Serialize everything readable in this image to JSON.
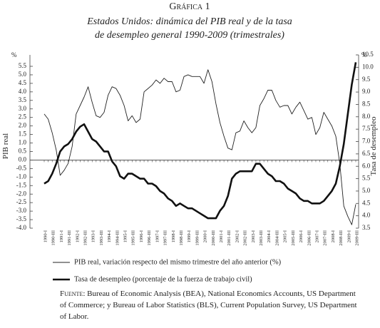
{
  "chart_data": {
    "type": "line",
    "kicker": "Gráfica 1",
    "title": [
      "Estados Unidos: dinámica del PIB real y de la tasa",
      "de desempleo general 1990-2009 (trimestrales)"
    ],
    "y_unit": "%",
    "y2_unit": "%",
    "ylabel": "PIB real",
    "y2label": "Tasa de desempleo",
    "categories": [
      "1990-I",
      null,
      "1990-III",
      null,
      "1991-I",
      null,
      "1991-III",
      null,
      "1992-I",
      null,
      "1992-III",
      null,
      "1993-I",
      null,
      "1993-III",
      null,
      "1994-I",
      null,
      "1994-III",
      null,
      "1995-I",
      null,
      "1995-III",
      null,
      "1996-I",
      null,
      "1996-III",
      null,
      "1997-I",
      null,
      "1997-III",
      null,
      "1998-I",
      null,
      "1998-III",
      null,
      "1999-I",
      null,
      "1999-III",
      null,
      "2000-I",
      null,
      "2000-III",
      null,
      "2001-I",
      null,
      "2001-III",
      null,
      "2002-I",
      null,
      "2002-III",
      null,
      "2003-I",
      null,
      "2003-III",
      null,
      "2004-I",
      null,
      "2004-III",
      null,
      "2005-I",
      null,
      "2005-III",
      null,
      "2006-I",
      null,
      "2006-III",
      null,
      "2007-I",
      null,
      "2007-III",
      null,
      "2008-I",
      null,
      "2008-III",
      null,
      "2009-I",
      null,
      "2009-III"
    ],
    "series": [
      {
        "name": "PIB real, variación respecto del mismo trimestre del año anterior (%)",
        "color": "#222",
        "line_width": 0.9,
        "values": [
          2.7,
          2.4,
          1.6,
          0.6,
          -0.9,
          -0.6,
          -0.2,
          0.8,
          2.7,
          3.2,
          3.7,
          4.3,
          3.4,
          2.6,
          2.5,
          2.8,
          3.8,
          4.3,
          4.2,
          3.8,
          3.2,
          2.3,
          2.6,
          2.2,
          2.4,
          4.0,
          4.2,
          4.4,
          4.7,
          4.5,
          4.8,
          4.6,
          4.6,
          4.0,
          4.1,
          4.9,
          5.0,
          4.9,
          4.9,
          4.9,
          4.5,
          5.3,
          4.6,
          3.3,
          2.2,
          1.4,
          0.7,
          0.6,
          1.6,
          1.7,
          2.3,
          1.9,
          1.6,
          1.9,
          3.2,
          3.6,
          4.1,
          4.1,
          3.5,
          3.1,
          3.2,
          3.2,
          2.7,
          3.1,
          3.4,
          2.9,
          2.4,
          2.5,
          1.5,
          1.9,
          2.8,
          2.4,
          2.0,
          1.4,
          -0.2,
          -2.7,
          -3.3,
          -3.8,
          -2.6
        ]
      },
      {
        "name": "Tasa de desempleo (porcentaje de la fuerza de trabajo civil)",
        "color": "#111",
        "line_width": 2.6,
        "axis": "y2",
        "values": [
          5.3,
          5.4,
          5.7,
          6.1,
          6.6,
          6.8,
          6.9,
          7.1,
          7.4,
          7.6,
          7.7,
          7.4,
          7.1,
          7.0,
          6.8,
          6.6,
          6.6,
          6.2,
          6.0,
          5.6,
          5.5,
          5.7,
          5.7,
          5.6,
          5.5,
          5.5,
          5.3,
          5.3,
          5.2,
          5.0,
          4.9,
          4.7,
          4.6,
          4.4,
          4.5,
          4.4,
          4.3,
          4.3,
          4.2,
          4.1,
          4.0,
          3.9,
          3.9,
          3.9,
          4.2,
          4.4,
          4.8,
          5.5,
          5.7,
          5.8,
          5.8,
          5.8,
          5.8,
          6.1,
          6.1,
          5.9,
          5.7,
          5.6,
          5.4,
          5.4,
          5.3,
          5.1,
          5.0,
          4.9,
          4.7,
          4.6,
          4.6,
          4.5,
          4.5,
          4.5,
          4.6,
          4.8,
          5.0,
          5.3,
          6.0,
          6.9,
          8.1,
          9.3,
          10.2
        ]
      }
    ],
    "ylim": [
      -4.0,
      5.5
    ],
    "yticks": [
      {
        "value": 5.5,
        "label": "5.5"
      },
      {
        "value": 5,
        "label": "5.0"
      },
      4.5,
      {
        "value": 4,
        "label": "4.0"
      },
      3.5,
      {
        "value": 3,
        "label": "3.0"
      },
      2.5,
      {
        "value": 2,
        "label": "2.0"
      },
      1.5,
      {
        "value": 1,
        "label": "1.0"
      },
      0.5,
      {
        "value": 0,
        "label": "0.0"
      },
      -0.5,
      {
        "value": -1,
        "label": "-1.0"
      },
      -1.5,
      {
        "value": -2,
        "label": "-2.0"
      },
      -2.5,
      {
        "value": -3,
        "label": "-3.0"
      },
      -3.5,
      {
        "value": -4,
        "label": "-4.0"
      }
    ],
    "y2lim": [
      3.5,
      10.5
    ],
    "y2ticks": [
      10.5,
      {
        "value": 10,
        "label": "10.0"
      },
      9.5,
      {
        "value": 9,
        "label": "9.0"
      },
      8.5,
      {
        "value": 8,
        "label": "8.0"
      },
      7.5,
      {
        "value": 7,
        "label": "7.0"
      },
      6.5,
      {
        "value": 6,
        "label": "6.0"
      },
      5.5,
      {
        "value": 5,
        "label": "5.0"
      },
      4.5,
      {
        "value": 4,
        "label": "4.0"
      },
      3.5
    ],
    "source_label": "Fuente:",
    "source": "Bureau of Economic Analysis (BEA), National Economics Accounts, US Department of Commerce; y Bureau of Labor Statistics (BLS), Current Population Survey, US Department of Labor."
  }
}
